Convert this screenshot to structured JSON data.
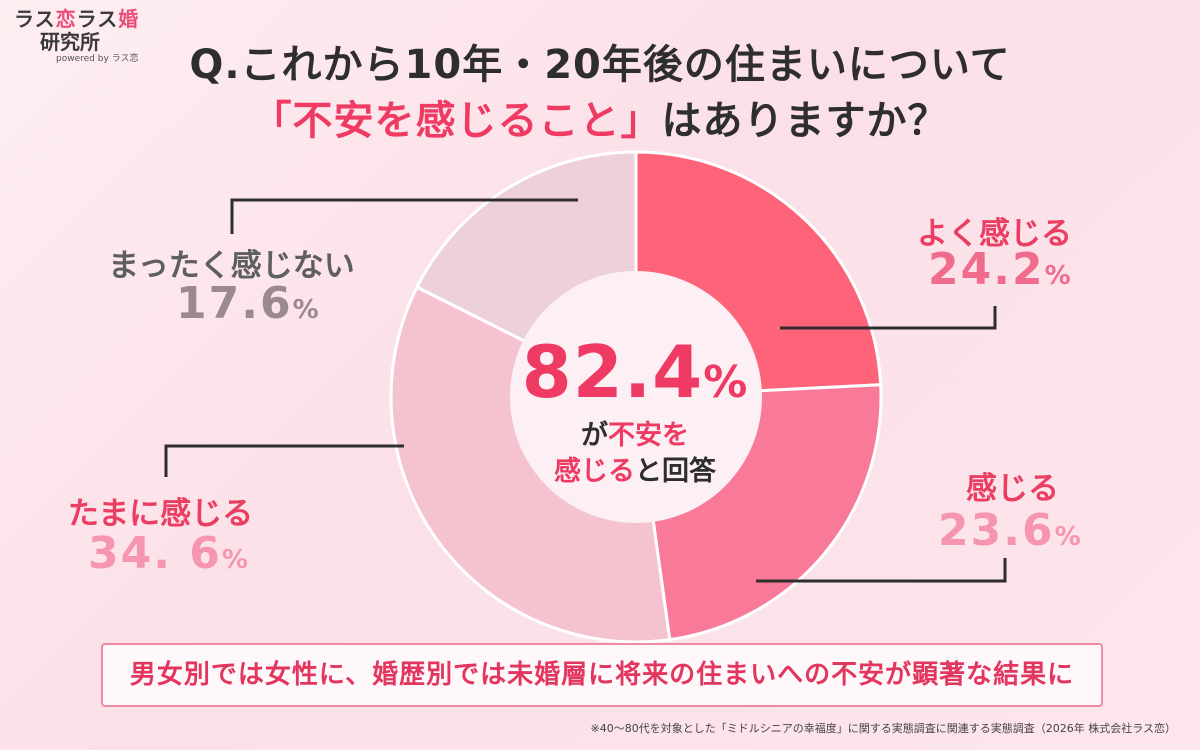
{
  "logo": {
    "part1": "ラス",
    "part2": "恋",
    "part3": "ラス",
    "part4": "婚",
    "line2": "研究所",
    "sub": "powered by ラス恋"
  },
  "title": {
    "line1": "Q.これから10年・20年後の住まいについて",
    "line2_highlight": "「不安を感じること」",
    "line2_rest": "はありますか？"
  },
  "center": {
    "number": "82.4",
    "unit": "%",
    "text1_pre": "が",
    "text1_hl": "不安を",
    "text2_hl": "感じる",
    "text2_rest": "と回答"
  },
  "labels": [
    {
      "category": "よく感じる",
      "value": "24.2",
      "unit": "%",
      "cat_color": "#ea3e62",
      "pct_color": "#f06b8c"
    },
    {
      "category": "感じる",
      "value": "23.6",
      "unit": "%",
      "cat_color": "#ea3e62",
      "pct_color": "#f595b0"
    },
    {
      "category": "たまに感じる",
      "value": "34. 6",
      "unit": "%",
      "cat_color": "#ea3e62",
      "pct_color": "#f595b0"
    },
    {
      "category": "まったく感じない",
      "value": "17.6",
      "unit": "%",
      "cat_color": "#5f5f5f",
      "pct_color": "#9a8a8e"
    }
  ],
  "summary": "男女別では女性に、婚歴別では未婚層に将来の住まいへの不安が顕著な結果に",
  "footnote": "※40〜80代を対象とした「ミドルシニアの幸福度」に関する実態調査に関連する実態調査（2026年 株式会社ラス恋）",
  "chart_data": {
    "type": "pie",
    "donut": true,
    "categories": [
      "よく感じる",
      "感じる",
      "たまに感じる",
      "まったく感じない"
    ],
    "values": [
      24.2,
      23.6,
      34.6,
      17.6
    ],
    "colors": [
      "#fd6479",
      "#f97a98",
      "#f5c3d0",
      "#edd0da"
    ],
    "center_label": "82.4%",
    "start": "12 o'clock, clockwise"
  }
}
